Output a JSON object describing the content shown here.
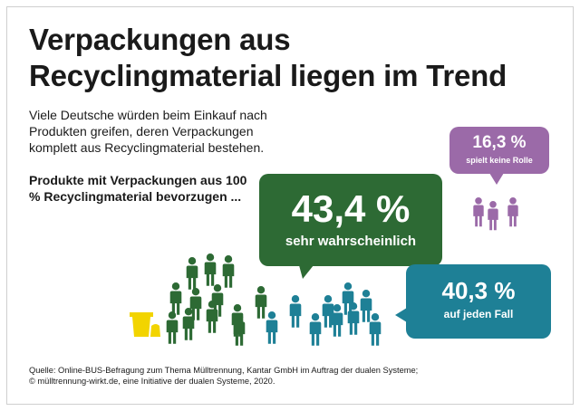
{
  "title": {
    "line1": "Verpackungen aus",
    "line2": "Recyclingmaterial liegen im Trend"
  },
  "intro": "Viele Deutsche würden beim Einkauf nach Produkten greifen, deren Verpackungen komplett aus Recyclingmaterial bestehen.",
  "question": "Produkte mit Verpackungen aus 100 % Recyclingmaterial bevorzugen ...",
  "source": {
    "line1": "Quelle: Online-BUS-Befragung zum Thema Mülltrennung, Kantar GmbH im Auftrag der dualen Systeme;",
    "line2": "© mülltrennung-wirkt.de, eine Initiative der dualen Systeme, 2020."
  },
  "colors": {
    "green": "#2d6a34",
    "teal": "#1e8096",
    "purple": "#9b6aa8",
    "bin": "#f2d400"
  },
  "icons": [
    "person-icon",
    "yellow-bin-icon"
  ],
  "chart_data": {
    "type": "pictogram",
    "categories": [
      "sehr wahrscheinlich",
      "auf jeden Fall",
      "spielt keine Rolle"
    ],
    "values": [
      43.4,
      40.3,
      16.3
    ],
    "value_labels": [
      "43,4 %",
      "40,3 %",
      "16,3 %"
    ],
    "unit": "%"
  }
}
